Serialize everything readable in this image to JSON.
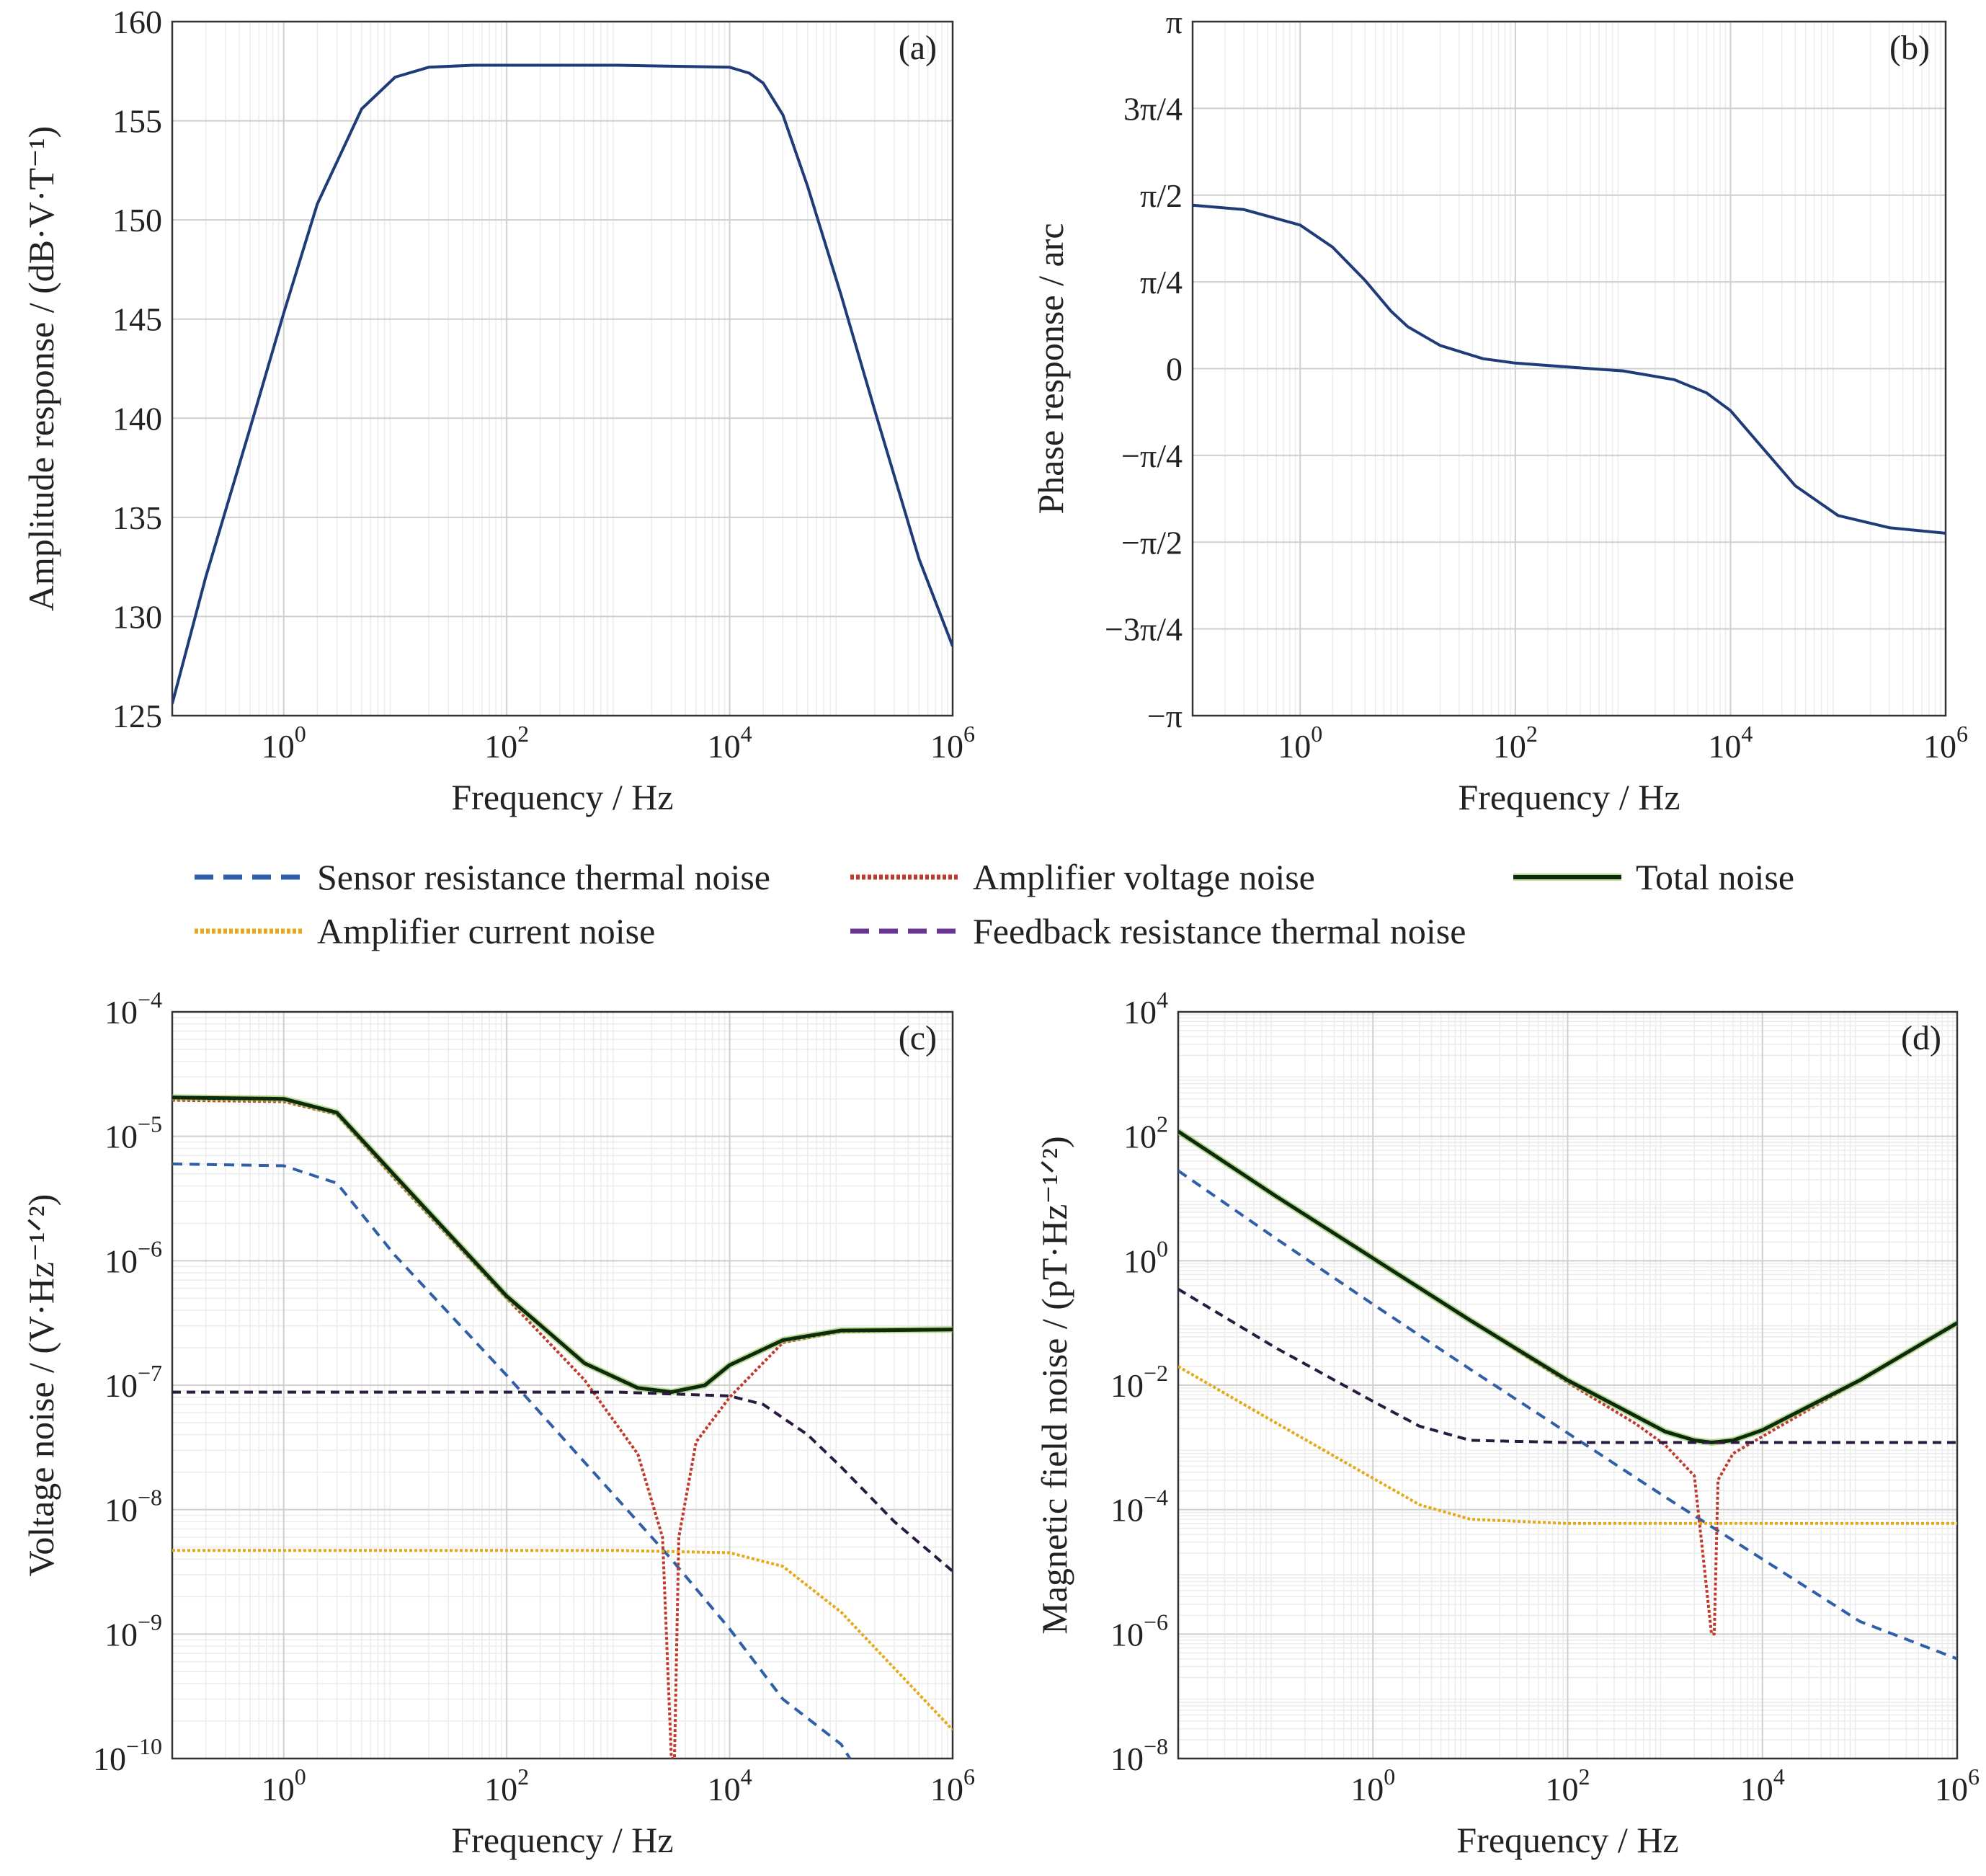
{
  "colors": {
    "main_line": "#1f3b78",
    "sensor": "#2e5fa8",
    "amp_voltage": "#c0392b",
    "total": "#0e2a0e",
    "total_glow": "#8bc34a",
    "amp_current": "#e6a817",
    "feedback": "#2a1a40"
  },
  "legend": {
    "items": [
      {
        "label": "Sensor resistance thermal noise",
        "color": "#2e5fa8",
        "style": "dashed"
      },
      {
        "label": "Amplifier voltage noise",
        "color": "#c0392b",
        "style": "dotted"
      },
      {
        "label": "Total noise",
        "color": "#0e2a0e",
        "style": "solid"
      },
      {
        "label": "Amplifier current noise",
        "color": "#e6a817",
        "style": "dotted"
      },
      {
        "label": "Feedback resistance thermal noise",
        "color": "#6a3590",
        "style": "dashed"
      }
    ]
  },
  "chart_data": [
    {
      "type": "line",
      "panel_label": "(a)",
      "xlabel": "Frequency / Hz",
      "ylabel": "Amplitude response / (dB·V·T⁻¹)",
      "xscale": "log",
      "xlim": [
        0.1,
        1000000
      ],
      "ylim": [
        125,
        160
      ],
      "xticks": [
        "10^0",
        "10^2",
        "10^4",
        "10^6"
      ],
      "yticks": [
        "125",
        "130",
        "135",
        "140",
        "145",
        "150",
        "155",
        "160"
      ],
      "series": [
        {
          "x": [
            0.1,
            0.2,
            0.5,
            1,
            2,
            5,
            10,
            20,
            50,
            100,
            1000,
            10000,
            15000,
            20000,
            30000,
            50000,
            100000,
            200000,
            500000,
            1000000
          ],
          "y": [
            125.6,
            132,
            139.5,
            145.3,
            150.8,
            155.6,
            157.2,
            157.7,
            157.8,
            157.8,
            157.8,
            157.7,
            157.4,
            156.9,
            155.3,
            151.7,
            146.2,
            140.4,
            132.9,
            128.5
          ]
        }
      ]
    },
    {
      "type": "line",
      "panel_label": "(b)",
      "xlabel": "Frequency / Hz",
      "ylabel": "Phase response / arc",
      "xscale": "log",
      "xlim": [
        0.1,
        1000000
      ],
      "ylim": [
        -3.14159,
        3.14159
      ],
      "xticks": [
        "10^0",
        "10^2",
        "10^4",
        "10^6"
      ],
      "yticks": [
        "−π",
        "−3π/4",
        "−π/2",
        "−π/4",
        "0",
        "π/4",
        "π/2",
        "3π/4",
        "π"
      ],
      "series": [
        {
          "x": [
            0.1,
            0.3,
            1,
            2,
            4,
            7,
            10,
            20,
            50,
            100,
            500,
            1000,
            3000,
            6000,
            10000,
            20000,
            40000,
            100000,
            300000,
            1000000
          ],
          "y": [
            1.48,
            1.44,
            1.3,
            1.1,
            0.8,
            0.52,
            0.38,
            0.21,
            0.09,
            0.05,
            0.0,
            -0.02,
            -0.1,
            -0.22,
            -0.38,
            -0.72,
            -1.06,
            -1.33,
            -1.44,
            -1.49
          ]
        }
      ]
    },
    {
      "type": "line",
      "panel_label": "(c)",
      "xlabel": "Frequency / Hz",
      "ylabel": "Voltage noise / (V·Hz⁻¹ᐟ²)",
      "xscale": "log",
      "yscale": "log",
      "xlim": [
        0.1,
        1000000
      ],
      "ylim": [
        1e-10,
        0.0001
      ],
      "xticks": [
        "10^0",
        "10^2",
        "10^4",
        "10^6"
      ],
      "yticks": [
        "10^−10",
        "10^−9",
        "10^−8",
        "10^−7",
        "10^−6",
        "10^−5",
        "10^−4"
      ],
      "series": [
        {
          "name": "Sensor resistance thermal noise",
          "x": [
            0.1,
            1,
            3,
            10,
            100,
            1000,
            3000,
            10000,
            30000,
            100000,
            120000
          ],
          "y": [
            6e-06,
            5.8e-06,
            4.2e-06,
            1.1e-06,
            1.2e-07,
            1.2e-08,
            4e-09,
            1.1e-09,
            3e-10,
            1.3e-10,
            1e-10
          ]
        },
        {
          "name": "Amplifier voltage noise",
          "x": [
            0.1,
            1,
            3,
            10,
            100,
            500,
            1500,
            2500,
            3000,
            3200,
            3500,
            5000,
            10000,
            30000,
            100000,
            1000000
          ],
          "y": [
            1.95e-05,
            1.9e-05,
            1.5e-05,
            4.5e-06,
            5e-07,
            1.1e-07,
            2.8e-08,
            6e-09,
            1e-10,
            1e-10,
            6e-09,
            3.5e-08,
            8e-08,
            2.2e-07,
            2.7e-07,
            2.8e-07
          ]
        },
        {
          "name": "Total noise",
          "x": [
            0.1,
            1,
            3,
            10,
            100,
            500,
            1500,
            3000,
            6000,
            10000,
            30000,
            100000,
            1000000
          ],
          "y": [
            2.05e-05,
            2e-05,
            1.55e-05,
            4.8e-06,
            5.2e-07,
            1.5e-07,
            9.5e-08,
            8.8e-08,
            1e-07,
            1.45e-07,
            2.3e-07,
            2.75e-07,
            2.8e-07
          ]
        },
        {
          "name": "Amplifier current noise",
          "x": [
            0.1,
            1,
            100,
            1000,
            10000,
            30000,
            100000,
            1000000
          ],
          "y": [
            4.7e-09,
            4.7e-09,
            4.7e-09,
            4.7e-09,
            4.5e-09,
            3.5e-09,
            1.5e-09,
            1.7e-10
          ]
        },
        {
          "name": "Feedback resistance thermal noise",
          "x": [
            0.1,
            1,
            100,
            1000,
            10000,
            20000,
            50000,
            100000,
            300000,
            1000000
          ],
          "y": [
            8.8e-08,
            8.8e-08,
            8.8e-08,
            8.8e-08,
            8.2e-08,
            7e-08,
            4e-08,
            2.2e-08,
            8e-09,
            3.2e-09
          ]
        }
      ]
    },
    {
      "type": "line",
      "panel_label": "(d)",
      "xlabel": "Frequency / Hz",
      "ylabel": "Magnetic field noise / (pT·Hz⁻¹ᐟ²)",
      "xscale": "log",
      "yscale": "log",
      "xlim": [
        0.01,
        1000000
      ],
      "ylim": [
        1e-08,
        10000
      ],
      "xticks": [
        "10^0",
        "10^2",
        "10^4",
        "10^6"
      ],
      "yticks": [
        "10^−8",
        "10^−6",
        "10^−4",
        "10^−2",
        "10^0",
        "10^2",
        "10^4"
      ],
      "series": [
        {
          "name": "Sensor resistance thermal noise",
          "x": [
            0.01,
            0.1,
            1,
            10,
            100,
            1000,
            10000,
            100000,
            1000000
          ],
          "y": [
            28,
            2.3,
            0.2,
            0.018,
            0.0017,
            0.00016,
            1.6e-05,
            1.6e-06,
            4e-07
          ]
        },
        {
          "name": "Amplifier voltage noise",
          "x": [
            0.01,
            0.1,
            1,
            10,
            100,
            500,
            1000,
            2000,
            3000,
            3200,
            3500,
            5000,
            10000,
            100000,
            1000000
          ],
          "y": [
            120,
            11,
            1.1,
            0.11,
            0.011,
            0.0024,
            0.0011,
            0.00035,
            1e-06,
            1e-06,
            0.0003,
            0.0008,
            0.0015,
            0.012,
            0.1
          ]
        },
        {
          "name": "Total noise",
          "x": [
            0.01,
            0.1,
            1,
            10,
            100,
            1000,
            2000,
            3000,
            5000,
            10000,
            100000,
            1000000
          ],
          "y": [
            120,
            11,
            1.1,
            0.11,
            0.012,
            0.0018,
            0.0013,
            0.0012,
            0.0013,
            0.0019,
            0.012,
            0.1
          ]
        },
        {
          "name": "Amplifier current noise",
          "x": [
            0.01,
            0.1,
            1,
            3,
            10,
            100,
            1000,
            10000,
            100000,
            1000000
          ],
          "y": [
            0.02,
            0.0025,
            0.00032,
            0.00012,
            7e-05,
            6e-05,
            6e-05,
            6e-05,
            6e-05,
            6e-05
          ]
        },
        {
          "name": "Feedback resistance thermal noise",
          "x": [
            0.01,
            0.1,
            1,
            3,
            10,
            100,
            1000,
            10000,
            100000,
            1000000
          ],
          "y": [
            0.35,
            0.04,
            0.0055,
            0.0022,
            0.0013,
            0.0012,
            0.0012,
            0.0012,
            0.0012,
            0.0012
          ]
        }
      ]
    }
  ]
}
